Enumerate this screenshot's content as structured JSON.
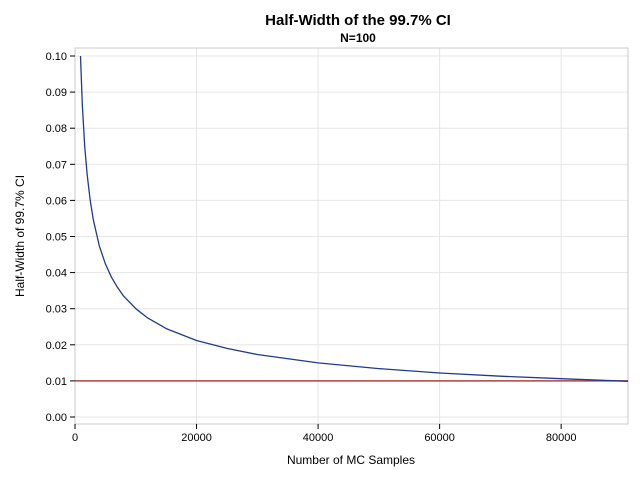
{
  "chart_data": {
    "type": "line",
    "title": "Half-Width of the 99.7% CI",
    "subtitle": "N=100",
    "xlabel": "Number of MC Samples",
    "ylabel": "Half-Width of 99.7% CI",
    "xlim": [
      0,
      91000
    ],
    "ylim": [
      0,
      0.1
    ],
    "xticks": [
      0,
      20000,
      40000,
      60000,
      80000
    ],
    "xtick_labels": [
      "0",
      "20000",
      "40000",
      "60000",
      "80000"
    ],
    "yticks": [
      0.0,
      0.01,
      0.02,
      0.03,
      0.04,
      0.05,
      0.06,
      0.07,
      0.08,
      0.09,
      0.1
    ],
    "ytick_labels": [
      "0.00",
      "0.01",
      "0.02",
      "0.03",
      "0.04",
      "0.05",
      "0.06",
      "0.07",
      "0.08",
      "0.09",
      "0.10"
    ],
    "grid": true,
    "series": [
      {
        "color": "#1f3c8c",
        "x": [
          900,
          1200,
          1600,
          2000,
          2500,
          3000,
          4000,
          5000,
          6000,
          7000,
          8000,
          10000,
          12000,
          15000,
          20000,
          25000,
          30000,
          40000,
          50000,
          60000,
          70000,
          80000,
          91000
        ],
        "y": [
          0.1,
          0.0866,
          0.075,
          0.0671,
          0.06,
          0.0548,
          0.0474,
          0.0424,
          0.0387,
          0.0359,
          0.0335,
          0.03,
          0.0274,
          0.0245,
          0.0212,
          0.019,
          0.0173,
          0.015,
          0.0134,
          0.0122,
          0.0113,
          0.0106,
          0.0099
        ]
      }
    ],
    "reference_lines": [
      {
        "y": 0.01,
        "color": "#b0413e"
      }
    ]
  }
}
